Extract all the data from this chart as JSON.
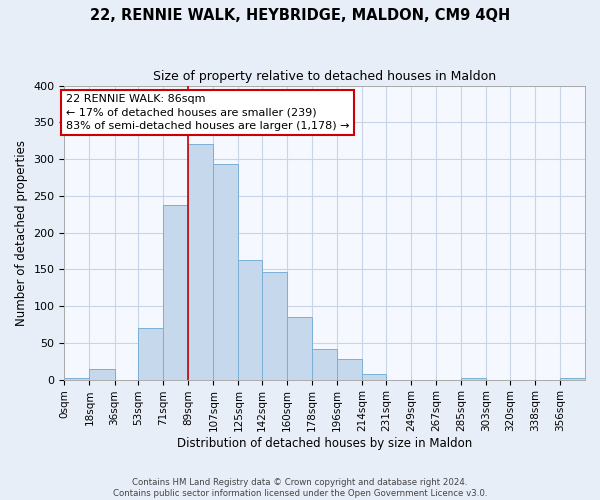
{
  "title": "22, RENNIE WALK, HEYBRIDGE, MALDON, CM9 4QH",
  "subtitle": "Size of property relative to detached houses in Maldon",
  "xlabel": "Distribution of detached houses by size in Maldon",
  "ylabel": "Number of detached properties",
  "bar_labels": [
    "0sqm",
    "18sqm",
    "36sqm",
    "53sqm",
    "71sqm",
    "89sqm",
    "107sqm",
    "125sqm",
    "142sqm",
    "160sqm",
    "178sqm",
    "196sqm",
    "214sqm",
    "231sqm",
    "249sqm",
    "267sqm",
    "285sqm",
    "303sqm",
    "320sqm",
    "338sqm",
    "356sqm"
  ],
  "bar_values": [
    2,
    15,
    0,
    70,
    237,
    320,
    293,
    163,
    147,
    85,
    42,
    28,
    7,
    0,
    0,
    0,
    2,
    0,
    0,
    0,
    2
  ],
  "bin_edges": [
    0,
    18,
    36,
    53,
    71,
    89,
    107,
    125,
    142,
    160,
    178,
    196,
    214,
    231,
    249,
    267,
    285,
    303,
    320,
    338,
    356,
    374
  ],
  "bar_color": "#c6d9ec",
  "bar_edge_color": "#7aafd4",
  "property_line_x": 89,
  "property_line_color": "#cc0000",
  "annotation_text_line1": "22 RENNIE WALK: 86sqm",
  "annotation_text_line2": "← 17% of detached houses are smaller (239)",
  "annotation_text_line3": "83% of semi-detached houses are larger (1,178) →",
  "annotation_box_color": "white",
  "annotation_box_edge": "#cc0000",
  "ylim": [
    0,
    400
  ],
  "yticks": [
    0,
    50,
    100,
    150,
    200,
    250,
    300,
    350,
    400
  ],
  "footer_line1": "Contains HM Land Registry data © Crown copyright and database right 2024.",
  "footer_line2": "Contains public sector information licensed under the Open Government Licence v3.0.",
  "bg_color": "#e8eef8",
  "plot_bg_color": "#f5f8ff",
  "grid_color": "#c8d4e8"
}
